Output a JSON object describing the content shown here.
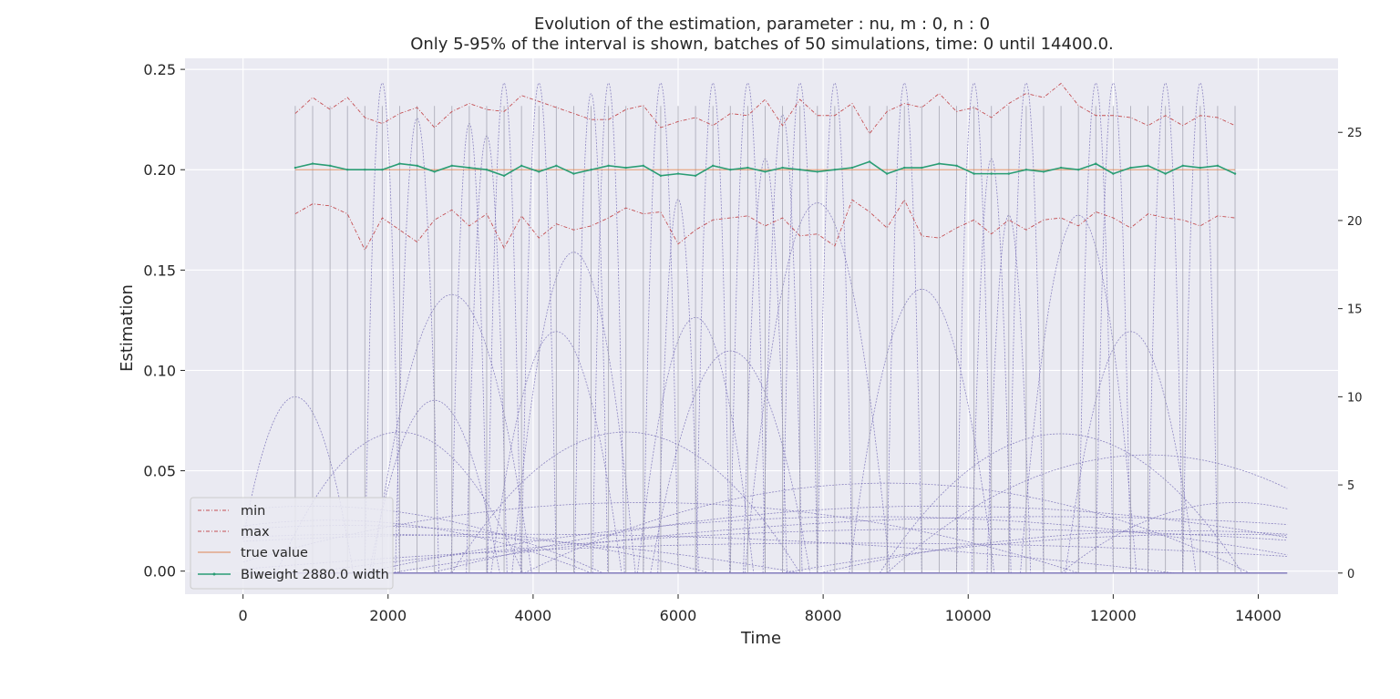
{
  "chart_data": {
    "type": "line",
    "title": "Evolution of the estimation, parameter : nu, m : 0, n : 0",
    "subtitle": "Only 5-95% of the interval is shown, batches of 50 simulations, time: 0 until 14400.0.",
    "xlabel": "Time",
    "ylabel": "Estimation",
    "xlim": [
      -800,
      15100
    ],
    "ylim": [
      -0.0115,
      0.2555
    ],
    "ylim_right": [
      -1.2,
      29.2
    ],
    "x_ticks": [
      0,
      2000,
      4000,
      6000,
      8000,
      10000,
      12000,
      14000
    ],
    "x_tick_labels": [
      "0",
      "2000",
      "4000",
      "6000",
      "8000",
      "10000",
      "12000",
      "14000"
    ],
    "y_ticks": [
      0.0,
      0.05,
      0.1,
      0.15,
      0.2,
      0.25
    ],
    "y_tick_labels": [
      "0.00",
      "0.05",
      "0.10",
      "0.15",
      "0.20",
      "0.25"
    ],
    "y_right_ticks": [
      0,
      5,
      10,
      15,
      20,
      25
    ],
    "y_right_tick_labels": [
      "0",
      "5",
      "10",
      "15",
      "20",
      "25"
    ],
    "grid": true,
    "legend_position": "lower-left",
    "x": [
      720,
      960,
      1200,
      1440,
      1680,
      1920,
      2160,
      2400,
      2640,
      2880,
      3120,
      3360,
      3600,
      3840,
      4080,
      4320,
      4560,
      4800,
      5040,
      5280,
      5520,
      5760,
      6000,
      6240,
      6480,
      6720,
      6960,
      7200,
      7440,
      7680,
      7920,
      8160,
      8400,
      8640,
      8880,
      9120,
      9360,
      9600,
      9840,
      10080,
      10320,
      10560,
      10800,
      11040,
      11280,
      11520,
      11760,
      12000,
      12240,
      12480,
      12720,
      12960,
      13200,
      13440,
      13680
    ],
    "series": [
      {
        "name": "min",
        "color": "#c44e52",
        "style": "dashdot",
        "values": [
          0.178,
          0.183,
          0.182,
          0.178,
          0.16,
          0.176,
          0.17,
          0.164,
          0.175,
          0.18,
          0.172,
          0.178,
          0.161,
          0.177,
          0.166,
          0.173,
          0.17,
          0.172,
          0.176,
          0.181,
          0.178,
          0.179,
          0.163,
          0.17,
          0.175,
          0.176,
          0.177,
          0.172,
          0.176,
          0.167,
          0.168,
          0.162,
          0.185,
          0.179,
          0.171,
          0.185,
          0.167,
          0.166,
          0.171,
          0.175,
          0.168,
          0.175,
          0.17,
          0.175,
          0.176,
          0.172,
          0.179,
          0.176,
          0.171,
          0.178,
          0.176,
          0.175,
          0.172,
          0.177,
          0.176
        ]
      },
      {
        "name": "max",
        "color": "#c44e52",
        "style": "dashdot",
        "values": [
          0.228,
          0.236,
          0.23,
          0.236,
          0.226,
          0.223,
          0.228,
          0.231,
          0.221,
          0.229,
          0.233,
          0.23,
          0.229,
          0.237,
          0.234,
          0.231,
          0.228,
          0.225,
          0.225,
          0.23,
          0.232,
          0.221,
          0.224,
          0.226,
          0.222,
          0.228,
          0.227,
          0.235,
          0.222,
          0.235,
          0.227,
          0.227,
          0.233,
          0.218,
          0.229,
          0.233,
          0.231,
          0.238,
          0.229,
          0.231,
          0.226,
          0.233,
          0.238,
          0.236,
          0.243,
          0.232,
          0.227,
          0.227,
          0.226,
          0.222,
          0.227,
          0.222,
          0.227,
          0.226,
          0.222
        ]
      },
      {
        "name": "true value",
        "color": "#dd8452",
        "style": "solid",
        "values": [
          0.2,
          0.2,
          0.2,
          0.2,
          0.2,
          0.2,
          0.2,
          0.2,
          0.2,
          0.2,
          0.2,
          0.2,
          0.2,
          0.2,
          0.2,
          0.2,
          0.2,
          0.2,
          0.2,
          0.2,
          0.2,
          0.2,
          0.2,
          0.2,
          0.2,
          0.2,
          0.2,
          0.2,
          0.2,
          0.2,
          0.2,
          0.2,
          0.2,
          0.2,
          0.2,
          0.2,
          0.2,
          0.2,
          0.2,
          0.2,
          0.2,
          0.2,
          0.2,
          0.2,
          0.2,
          0.2,
          0.2,
          0.2,
          0.2,
          0.2,
          0.2,
          0.2,
          0.2,
          0.2,
          0.2
        ]
      },
      {
        "name": "Biweight 2880.0 width",
        "color": "#2a9d74",
        "style": "solid-marker",
        "values": [
          0.201,
          0.203,
          0.202,
          0.2,
          0.2,
          0.2,
          0.203,
          0.202,
          0.199,
          0.202,
          0.201,
          0.2,
          0.197,
          0.202,
          0.199,
          0.202,
          0.198,
          0.2,
          0.202,
          0.201,
          0.202,
          0.197,
          0.198,
          0.197,
          0.202,
          0.2,
          0.201,
          0.199,
          0.201,
          0.2,
          0.199,
          0.2,
          0.201,
          0.204,
          0.198,
          0.201,
          0.201,
          0.203,
          0.202,
          0.198,
          0.198,
          0.198,
          0.2,
          0.199,
          0.201,
          0.2,
          0.203,
          0.198,
          0.201,
          0.202,
          0.198,
          0.202,
          0.201,
          0.202,
          0.198
        ]
      }
    ],
    "kernel_curves": {
      "color": "#7b73b8",
      "axis": "right",
      "centers": [
        720,
        960,
        1200,
        1440,
        1680,
        1920,
        2160,
        2400,
        2640,
        2880,
        3120,
        3360,
        3600,
        3840,
        4080,
        4320,
        4560,
        4800,
        5040,
        5280,
        5520,
        5760,
        6000,
        6240,
        6480,
        6720,
        6960,
        7200,
        7440,
        7680,
        7920,
        8160,
        8400,
        8640,
        8880,
        9120,
        9360,
        9600,
        9840,
        10080,
        10320,
        10560,
        10800,
        11040,
        11280,
        11520,
        11760,
        12000,
        12240,
        12480,
        12720,
        12960,
        13200,
        13440,
        13680
      ],
      "peaks": [
        10.0,
        3.8,
        3.0,
        2.7,
        2.2,
        27.8,
        8.0,
        25.8,
        9.8,
        15.8,
        25.5,
        24.8,
        27.8,
        2.2,
        27.8,
        13.7,
        18.2,
        27.2,
        27.8,
        8.0,
        4.0,
        27.8,
        21.2,
        14.5,
        27.8,
        12.6,
        27.8,
        23.5,
        26.0,
        27.8,
        21.0,
        27.8,
        1.7,
        3.2,
        5.1,
        27.8,
        16.1,
        3.8,
        2.5,
        27.8,
        23.5,
        20.3,
        27.8,
        3.2,
        7.9,
        20.3,
        27.8,
        27.8,
        13.7,
        6.7,
        27.8,
        2.4,
        27.8,
        2.2,
        4.0
      ],
      "half_widths": [
        800,
        4000,
        3600,
        5000,
        6000,
        240,
        1700,
        300,
        900,
        1100,
        250,
        280,
        230,
        9000,
        240,
        900,
        850,
        230,
        220,
        2400,
        6000,
        240,
        280,
        800,
        230,
        1100,
        240,
        300,
        270,
        240,
        1000,
        240,
        9000,
        7000,
        5000,
        240,
        1000,
        7000,
        9000,
        240,
        270,
        300,
        240,
        9000,
        2500,
        800,
        240,
        240,
        900,
        3600,
        240,
        5000,
        240,
        6000,
        2400
      ]
    },
    "batch_markers_x": [
      720,
      960,
      1200,
      1440,
      1680,
      1920,
      2160,
      2400,
      2640,
      2880,
      3120,
      3360,
      3600,
      3840,
      4080,
      4320,
      4560,
      4800,
      5040,
      5280,
      5520,
      5760,
      6000,
      6240,
      6480,
      6720,
      6960,
      7200,
      7440,
      7680,
      7920,
      8160,
      8400,
      8640,
      8880,
      9120,
      9360,
      9600,
      9840,
      10080,
      10320,
      10560,
      10800,
      11040,
      11280,
      11520,
      11760,
      12000,
      12240,
      12480,
      12720,
      12960,
      13200,
      13440,
      13680
    ]
  },
  "legend": {
    "items": [
      "min",
      "max",
      "true value",
      "Biweight 2880.0 width"
    ]
  },
  "colors": {
    "plot_background": "#eaeaf2",
    "grid": "#ffffff",
    "min_max": "#c44e52",
    "true_value": "#dd8452",
    "estimate": "#2a9d74",
    "kernels": "#7b73b8"
  }
}
